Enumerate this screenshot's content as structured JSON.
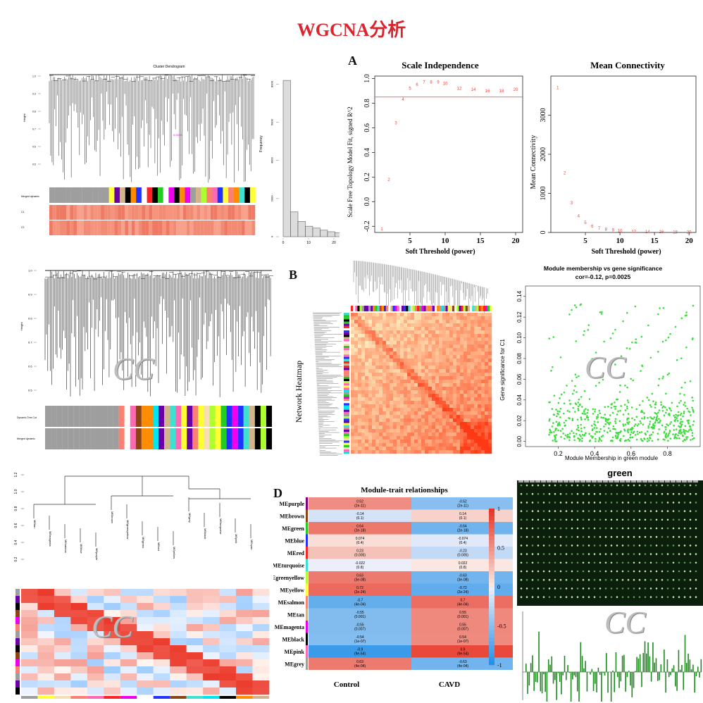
{
  "page": {
    "title": "WGCNA分析",
    "watermark": "CC",
    "letters": {
      "a": "A",
      "b": "B",
      "d": "D"
    }
  },
  "colors": {
    "title": "#d9262e",
    "scatter_red": "#e8463d",
    "mm_green": "#3fdc3f",
    "dendro": "#222222",
    "heat_low": "#fff7cc",
    "heat_high": "#e0301e"
  },
  "panel_top_left": {
    "title": "Cluster Dendrogram",
    "ylabel": "Height",
    "color_rows": [
      "Merged dynamic",
      "C1",
      "C2"
    ],
    "y_ticks": [
      "1.0",
      "0.9",
      "0.8",
      "0.7",
      "0.6",
      "0.5"
    ],
    "label_node": "0.0025"
  },
  "histogram": {
    "ylabel": "Frequency",
    "y_ticks": [
      "0",
      "2000",
      "4000",
      "6000",
      "8000"
    ],
    "x_ticks": [
      "0",
      "10",
      "20"
    ],
    "chart_data": {
      "type": "bar",
      "bins": [
        "0-3",
        "3-6",
        "6-9",
        "9-12",
        "12-15",
        "15-18",
        "18-21",
        "21-24",
        "24-27",
        "27-30"
      ],
      "values": [
        8200,
        1300,
        800,
        550,
        450,
        340,
        260,
        200,
        140,
        90
      ],
      "ylim": [
        0,
        8500
      ]
    }
  },
  "scale_independence": {
    "chart_data": {
      "type": "scatter",
      "title": "Scale Independence",
      "xlabel": "Soft Threshold (power)",
      "ylabel": "Scale Free Topology Model Fit, signed R^2",
      "xlim": [
        0,
        21
      ],
      "ylim": [
        -0.25,
        1.02
      ],
      "x": [
        1,
        2,
        3,
        4,
        5,
        6,
        7,
        8,
        9,
        10,
        12,
        14,
        16,
        18,
        20
      ],
      "y": [
        -0.22,
        0.18,
        0.64,
        0.83,
        0.92,
        0.95,
        0.97,
        0.97,
        0.97,
        0.96,
        0.92,
        0.91,
        0.9,
        0.9,
        0.91
      ],
      "labels": [
        "1",
        "2",
        "3",
        "4",
        "5",
        "6",
        "7",
        "8",
        "9",
        "10",
        "12",
        "14",
        "16",
        "18",
        "20"
      ],
      "hline": 0.85,
      "x_ticks": [
        "5",
        "10",
        "15",
        "20"
      ],
      "y_ticks": [
        "-0.2",
        "0.0",
        "0.2",
        "0.4",
        "0.6",
        "0.8",
        "1.0"
      ]
    }
  },
  "mean_connectivity": {
    "chart_data": {
      "type": "scatter",
      "title": "Mean Connectivity",
      "xlabel": "Soft Threshold (power)",
      "ylabel": "Mean Connectivity",
      "xlim": [
        0,
        21
      ],
      "ylim": [
        0,
        4000
      ],
      "x": [
        1,
        2,
        3,
        4,
        5,
        6,
        7,
        8,
        9,
        10,
        12,
        14,
        16,
        18,
        20
      ],
      "y": [
        3700,
        1520,
        760,
        420,
        250,
        160,
        110,
        80,
        60,
        45,
        30,
        22,
        16,
        12,
        9
      ],
      "labels": [
        "1",
        "2",
        "3",
        "4",
        "5",
        "6",
        "7",
        "8",
        "9",
        "10",
        "12",
        "14",
        "16",
        "18",
        "20"
      ],
      "x_ticks": [
        "5",
        "10",
        "15",
        "20"
      ],
      "y_ticks": [
        "0",
        "1000",
        "2000",
        "3000"
      ]
    }
  },
  "dendro2": {
    "ylabel": "Height",
    "y_ticks": [
      "1.0",
      "0.9",
      "0.8",
      "0.7",
      "0.6",
      "0.5"
    ],
    "rows": [
      "Dynamic Tree Cut",
      "Merged dynamic"
    ]
  },
  "network_heatmap": {
    "title": "Network Heatmap"
  },
  "module_membership": {
    "chart_data": {
      "type": "scatter",
      "title": "Module membership vs gene significance",
      "subtitle": "cor=-0.12, p=0.0025",
      "xlabel": "Module Membership in green module",
      "ylabel": "Gene significance for C1",
      "xlim": [
        0.02,
        0.98
      ],
      "ylim": [
        -0.005,
        0.15
      ],
      "x_ticks": [
        "0.2",
        "0.4",
        "0.6",
        "0.8"
      ],
      "y_ticks": [
        "0.00",
        "0.02",
        "0.04",
        "0.06",
        "0.08",
        "0.10",
        "0.12",
        "0.14"
      ],
      "n_points": 600
    }
  },
  "eigengene_dendro": {
    "y_ticks": [
      "1.2",
      "1.0",
      "0.8",
      "0.6",
      "0.4",
      "0.2"
    ],
    "leaves": [
      "MEtan",
      "MEmagenta",
      "MEsalmon",
      "MEblue",
      "MEpurple",
      "MEbrown",
      "MEgreenyellow",
      "MEgreen",
      "MEred",
      "MEyellow",
      "MEgrey",
      "MEblack",
      "MEturquoise",
      "MEpink",
      "MEcyan"
    ]
  },
  "module_trait": {
    "chart_data": {
      "type": "heatmap",
      "title": "Module-trait relationships",
      "columns": [
        "Control",
        "CAVD"
      ],
      "rows": [
        "MEpurple",
        "MEbrown",
        "MEgreen",
        "MEblue",
        "MEred",
        "MEturquoise",
        "Egreenyellow",
        "MEyellow",
        "MEsalmon",
        "MEtan",
        "MEmagenta",
        "MEblack",
        "MEpink",
        "MEgrey"
      ],
      "values": [
        [
          0.52,
          -0.52
        ],
        [
          -0.14,
          0.14
        ],
        [
          0.64,
          -0.64
        ],
        [
          0.074,
          -0.074
        ],
        [
          0.23,
          -0.23
        ],
        [
          -0.022,
          0.022
        ],
        [
          0.63,
          -0.63
        ],
        [
          0.72,
          -0.72
        ],
        [
          -0.7,
          0.7
        ],
        [
          -0.55,
          0.55
        ],
        [
          -0.55,
          0.55
        ],
        [
          -0.54,
          0.54
        ],
        [
          -0.9,
          0.9
        ],
        [
          0.63,
          -0.63
        ]
      ],
      "cell_text": [
        [
          "0.52\n(2e-11)",
          "-0.52\n(2e-11)"
        ],
        [
          "-0.14\n(0.1)",
          "0.14\n(0.1)"
        ],
        [
          "0.64\n(2e-18)",
          "-0.64\n(2e-18)"
        ],
        [
          "0.074\n(0.4)",
          "-0.074\n(0.4)"
        ],
        [
          "0.23\n(0.005)",
          "-0.23\n(0.005)"
        ],
        [
          "-0.022\n(0.8)",
          "0.022\n(0.8)"
        ],
        [
          "0.63\n(3e-08)",
          "-0.63\n(3e-08)"
        ],
        [
          "0.72\n(2e-24)",
          "-0.72\n(2e-24)"
        ],
        [
          "-0.7\n(4e-04)",
          "0.7\n(4e-04)"
        ],
        [
          "-0.55\n(0.001)",
          "0.55\n(0.001)"
        ],
        [
          "-0.55\n(0.007)",
          "0.55\n(0.007)"
        ],
        [
          "-0.54\n(1e-07)",
          "0.54\n(1e-07)"
        ],
        [
          "-0.9\n(9e-54)",
          "0.9\n(9e-54)"
        ],
        [
          "0.63\n(4e-04)",
          "-0.63\n(4e-04)"
        ]
      ],
      "legend_ticks": [
        "1",
        "0.5",
        "0",
        "-0.5",
        "-1"
      ],
      "range": [
        -1,
        1
      ]
    }
  },
  "green_module": {
    "title": "green"
  }
}
